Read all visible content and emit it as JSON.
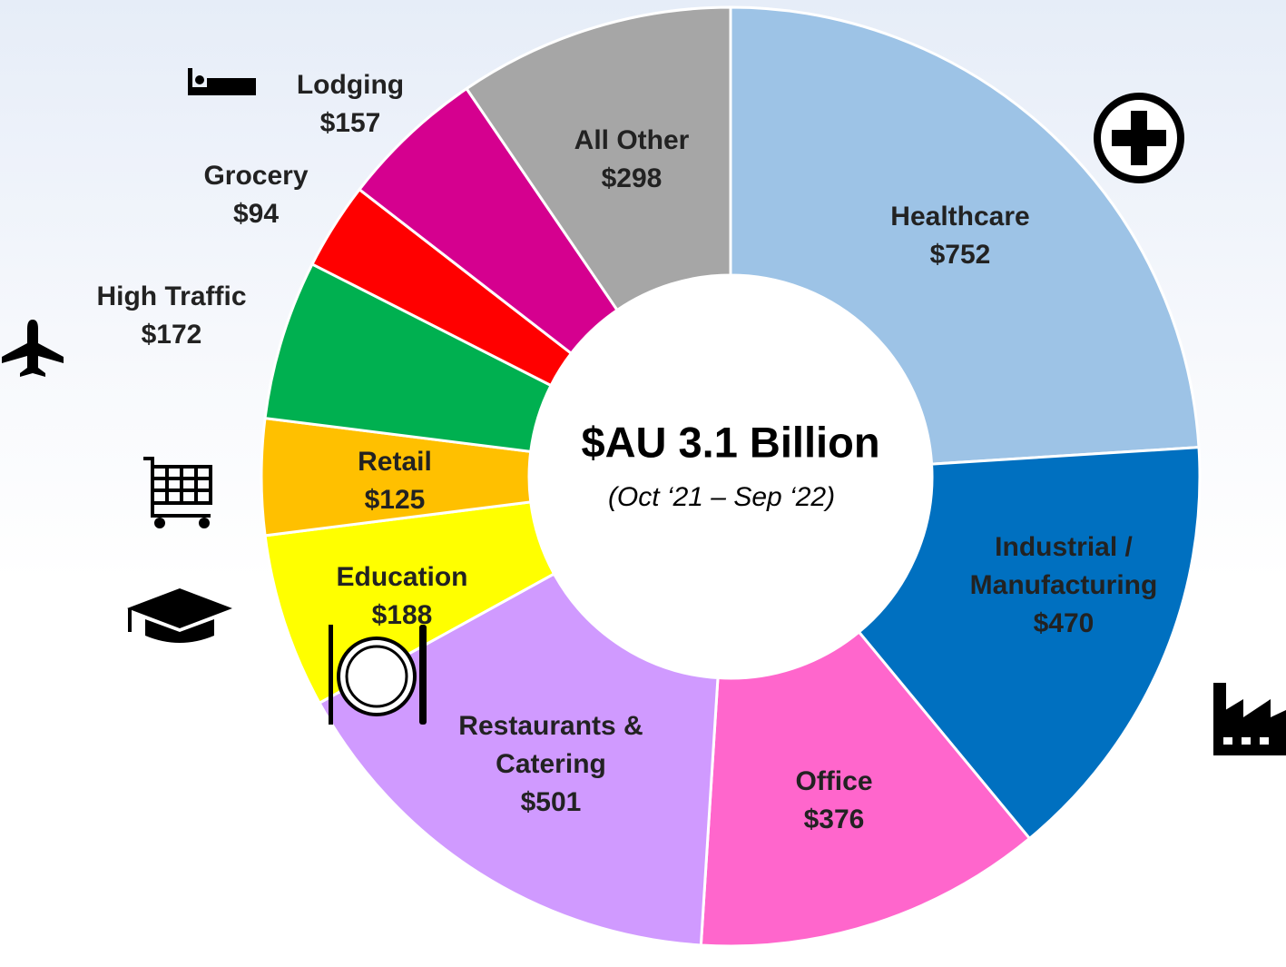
{
  "chart_data": {
    "type": "donut",
    "center_title": "$AU 3.1 Billion",
    "center_subtitle": "(Oct ‘21 – Sep ‘22)",
    "categories": [
      "Healthcare",
      "Industrial / Manufacturing",
      "Office",
      "Restaurants & Catering",
      "Education",
      "Retail",
      "High Traffic",
      "Grocery",
      "Lodging",
      "All Other"
    ],
    "values": [
      752,
      470,
      376,
      501,
      188,
      125,
      172,
      94,
      157,
      298
    ],
    "value_labels": [
      "$752",
      "$470",
      "$376",
      "$501",
      "$188",
      "$125",
      "$172",
      "$94",
      "$157",
      "$298"
    ],
    "colors": [
      "#9dc3e6",
      "#0070c0",
      "#ff66cc",
      "#d09aff",
      "#ffff00",
      "#ffc000",
      "#00b050",
      "#ff0000",
      "#d5008f",
      "#a6a6a6"
    ]
  }
}
